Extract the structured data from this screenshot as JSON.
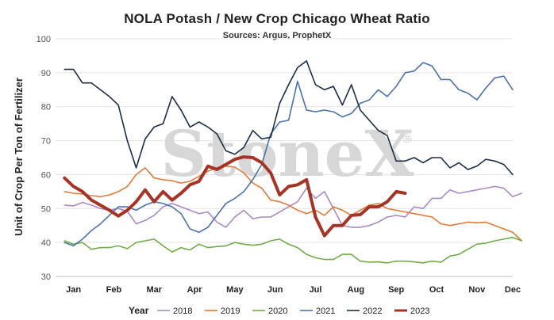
{
  "chart_data": {
    "type": "line",
    "title": "NOLA Potash / New Crop Chicago Wheat Ratio",
    "subtitle": "Sources: Argus, ProphetX",
    "ylabel": "Unit of Crop Per Ton of Fertilizer",
    "xlabel": "",
    "ylim": [
      30,
      100
    ],
    "yticks": [
      30,
      40,
      50,
      60,
      70,
      80,
      90,
      100
    ],
    "xlim": [
      1,
      52
    ],
    "months": [
      {
        "label": "Jan",
        "week": 3
      },
      {
        "label": "Feb",
        "week": 7.5
      },
      {
        "label": "Mar",
        "week": 12
      },
      {
        "label": "Apr",
        "week": 16.5
      },
      {
        "label": "May",
        "week": 21
      },
      {
        "label": "Jun",
        "week": 25.5
      },
      {
        "label": "Jul",
        "week": 30
      },
      {
        "label": "Aug",
        "week": 34.5
      },
      {
        "label": "Sep",
        "week": 39
      },
      {
        "label": "Oct",
        "week": 43.5
      },
      {
        "label": "Nov",
        "week": 48
      },
      {
        "label": "Dec",
        "week": 52
      }
    ],
    "grid": true,
    "legend_title": "Year",
    "legend_position": "bottom",
    "watermark": "StoneX",
    "watermark_mark": "®",
    "series": [
      {
        "name": "2018",
        "color": "#a98ac6",
        "width": 1.6,
        "x_start": 2,
        "values": [
          51,
          50.8,
          51.8,
          51,
          50,
          49.5,
          50,
          49.2,
          45.5,
          46.5,
          48,
          50.5,
          51.5,
          50.5,
          49.5,
          48.5,
          49,
          46,
          44.5,
          47.5,
          49.5,
          47,
          47.5,
          47.5,
          49,
          50.5,
          52,
          56,
          53,
          55,
          50,
          45,
          44.5,
          44.5,
          45,
          46,
          47.5,
          48,
          47.5,
          50.5,
          50,
          53,
          53,
          55.5,
          54.5,
          55,
          55.5,
          56,
          56.5,
          56,
          53.5,
          54.5
        ]
      },
      {
        "name": "2019",
        "color": "#e07a3a",
        "width": 1.6,
        "x_start": 2,
        "values": [
          55,
          54.5,
          54.3,
          53.8,
          53.5,
          54,
          55,
          56.5,
          60,
          62,
          59,
          58.5,
          58.2,
          57.5,
          58,
          59.5,
          61,
          62,
          62.5,
          62.2,
          60.5,
          57.5,
          56,
          52.5,
          52,
          51,
          49.5,
          48.5,
          49.5,
          48,
          50.5,
          49.5,
          48,
          49.5,
          51,
          51.5,
          50,
          49.5,
          49,
          48.5,
          48,
          47.5,
          45.5,
          45,
          45.5,
          46,
          45.8,
          46,
          45,
          44,
          43,
          40.5
        ]
      },
      {
        "name": "2020",
        "color": "#70ad47",
        "width": 1.6,
        "x_start": 2,
        "values": [
          40.5,
          39.5,
          40,
          38,
          38.5,
          38.5,
          39,
          38.2,
          40,
          40.5,
          41,
          39,
          37.2,
          38.5,
          37.8,
          39.5,
          38.5,
          38.8,
          39,
          40,
          39.5,
          39.2,
          39.5,
          40.5,
          41,
          39.5,
          38.5,
          36.5,
          35.5,
          35,
          35,
          36.5,
          36.5,
          34.5,
          34.2,
          34.3,
          34,
          34.5,
          34.5,
          34.3,
          34,
          34.5,
          34.2,
          36,
          36.5,
          38,
          39.5,
          39.8,
          40.5,
          41,
          41.5,
          40.5
        ]
      },
      {
        "name": "2021",
        "color": "#4a72ac",
        "width": 1.6,
        "x_start": 2,
        "values": [
          40,
          39,
          41,
          43.5,
          45.5,
          48,
          50.5,
          50.5,
          49.5,
          51,
          52,
          51.5,
          50.5,
          48.5,
          44,
          43,
          44.5,
          48,
          51.5,
          53,
          55,
          58.5,
          63,
          72,
          75.5,
          76,
          87.5,
          79,
          78.5,
          79,
          78.5,
          77,
          78,
          81,
          82,
          85,
          83,
          86,
          90,
          90.5,
          93,
          92,
          88,
          88,
          85,
          84,
          82,
          85.5,
          88.5,
          89,
          85
        ]
      },
      {
        "name": "2022",
        "color": "#1c2d45",
        "width": 1.6,
        "x_start": 2,
        "values": [
          91,
          91,
          87,
          87,
          85,
          83,
          80.5,
          70,
          62,
          70.5,
          74,
          75,
          83,
          79,
          74,
          75.5,
          74,
          72,
          67,
          66,
          68,
          73,
          70.5,
          71,
          81,
          86.5,
          91.5,
          93.5,
          86.5,
          85,
          86,
          80.5,
          86.5,
          79,
          76,
          73,
          71.5,
          64,
          64,
          65,
          63.5,
          65,
          65,
          62,
          63.5,
          61.5,
          62.5,
          64.5,
          64,
          63,
          60
        ]
      },
      {
        "name": "2023",
        "color": "#a63426",
        "width": 4,
        "x_start": 2,
        "values": [
          59,
          56.5,
          55,
          52.5,
          51,
          49.5,
          47.8,
          49.5,
          52,
          55.5,
          52,
          55,
          52.5,
          54.5,
          57,
          58,
          62.5,
          61.5,
          63,
          64.5,
          65.2,
          65,
          63.5,
          60.5,
          54,
          56.5,
          57,
          58.5,
          47.5,
          42,
          45,
          45,
          48,
          48.2,
          50.5,
          50.5,
          52,
          55,
          54.5
        ]
      }
    ]
  }
}
